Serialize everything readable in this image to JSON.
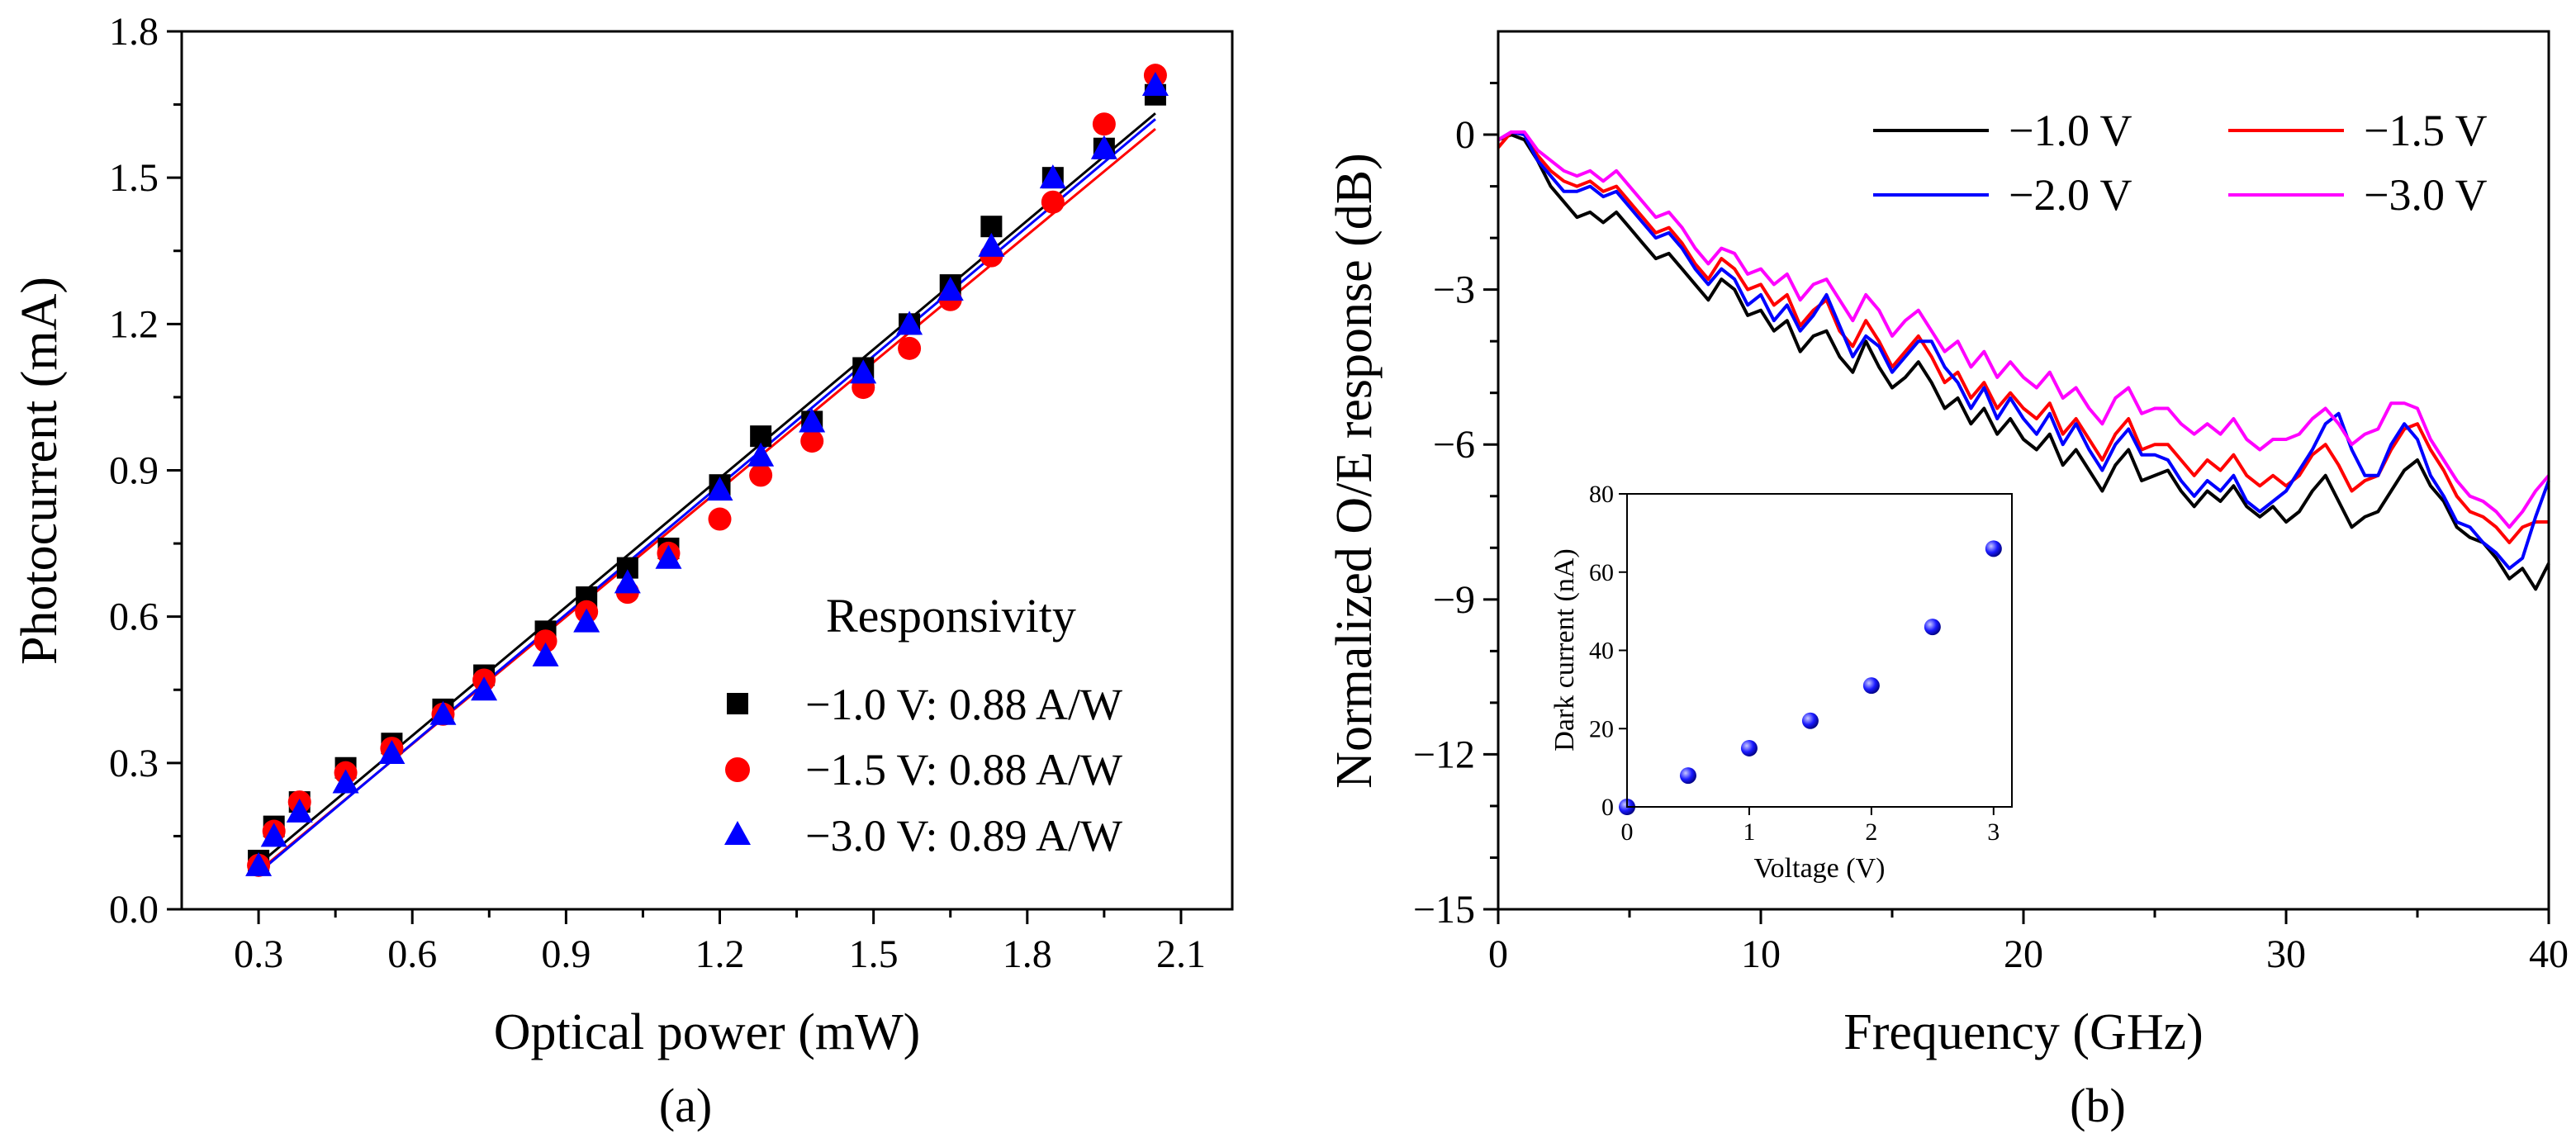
{
  "chart_data": [
    {
      "type": "scatter",
      "panel_label": "(a)",
      "xlabel": "Optical power (mW)",
      "ylabel": "Photocurrent (mA)",
      "xlim": [
        0.15,
        2.2
      ],
      "ylim": [
        0.0,
        1.8
      ],
      "xticks": [
        "0.3",
        "0.6",
        "0.9",
        "1.2",
        "1.5",
        "1.8",
        "2.1"
      ],
      "yticks": [
        "0.0",
        "0.3",
        "0.6",
        "0.9",
        "1.2",
        "1.5",
        "1.8"
      ],
      "legend_title": "Responsivity",
      "legend_position": "bottom-right",
      "series": [
        {
          "name": "−1.0 V: 0.88 A/W",
          "marker": "square",
          "color": "#000000",
          "x": [
            0.3,
            0.33,
            0.38,
            0.47,
            0.56,
            0.66,
            0.74,
            0.86,
            0.94,
            1.02,
            1.1,
            1.2,
            1.28,
            1.38,
            1.48,
            1.57,
            1.65,
            1.73,
            1.85,
            1.95,
            2.05
          ],
          "y": [
            0.1,
            0.17,
            0.22,
            0.29,
            0.34,
            0.41,
            0.48,
            0.57,
            0.64,
            0.7,
            0.74,
            0.87,
            0.97,
            1.0,
            1.11,
            1.2,
            1.28,
            1.4,
            1.5,
            1.56,
            1.67
          ],
          "fit": [
            [
              0.3,
              0.092
            ],
            [
              2.05,
              1.632
            ]
          ]
        },
        {
          "name": "−1.5 V: 0.88 A/W",
          "marker": "circle",
          "color": "#ff0000",
          "x": [
            0.3,
            0.33,
            0.38,
            0.47,
            0.56,
            0.66,
            0.74,
            0.86,
            0.94,
            1.02,
            1.1,
            1.2,
            1.28,
            1.38,
            1.48,
            1.57,
            1.65,
            1.73,
            1.85,
            1.95,
            2.05
          ],
          "y": [
            0.09,
            0.16,
            0.22,
            0.28,
            0.33,
            0.4,
            0.47,
            0.55,
            0.61,
            0.65,
            0.73,
            0.8,
            0.89,
            0.96,
            1.07,
            1.15,
            1.25,
            1.34,
            1.45,
            1.61,
            1.71
          ],
          "fit": [
            [
              0.3,
              0.078
            ],
            [
              2.05,
              1.6
            ]
          ]
        },
        {
          "name": "−3.0 V: 0.89 A/W",
          "marker": "triangle",
          "color": "#0000ff",
          "x": [
            0.3,
            0.33,
            0.38,
            0.47,
            0.56,
            0.66,
            0.74,
            0.86,
            0.94,
            1.02,
            1.1,
            1.2,
            1.28,
            1.38,
            1.48,
            1.57,
            1.65,
            1.73,
            1.85,
            1.95,
            2.05
          ],
          "y": [
            0.09,
            0.15,
            0.2,
            0.26,
            0.32,
            0.4,
            0.45,
            0.52,
            0.59,
            0.67,
            0.72,
            0.86,
            0.93,
            1.0,
            1.1,
            1.2,
            1.27,
            1.36,
            1.5,
            1.56,
            1.69
          ],
          "fit": [
            [
              0.3,
              0.075
            ],
            [
              2.05,
              1.62
            ]
          ]
        }
      ]
    },
    {
      "type": "line",
      "panel_label": "(b)",
      "xlabel": "Frequency (GHz)",
      "ylabel": "Normalized O/E response (dB)",
      "xlim": [
        0,
        40
      ],
      "ylim": [
        -15,
        2
      ],
      "xticks": [
        "0",
        "10",
        "20",
        "30",
        "40"
      ],
      "yticks": [
        "0",
        "−3",
        "−6",
        "−9",
        "−12",
        "−15"
      ],
      "legend_position": "top-right",
      "series": [
        {
          "name": "−1.0 V",
          "color": "#000000",
          "x": [
            0,
            0.5,
            1,
            1.5,
            2,
            2.5,
            3,
            3.5,
            4,
            4.5,
            5,
            5.5,
            6,
            6.5,
            7,
            7.5,
            8,
            8.5,
            9,
            9.5,
            10,
            10.5,
            11,
            11.5,
            12,
            12.5,
            13,
            13.5,
            14,
            14.5,
            15,
            15.5,
            16,
            16.5,
            17,
            17.5,
            18,
            18.5,
            19,
            19.5,
            20,
            20.5,
            21,
            21.5,
            22,
            22.5,
            23,
            23.5,
            24,
            24.5,
            25,
            25.5,
            26,
            26.5,
            27,
            27.5,
            28,
            28.5,
            29,
            29.5,
            30,
            30.5,
            31,
            31.5,
            32,
            32.5,
            33,
            33.5,
            34,
            34.5,
            35,
            35.5,
            36,
            36.5,
            37,
            37.5,
            38,
            38.5,
            39,
            39.5,
            40
          ],
          "y": [
            -0.1,
            0.0,
            -0.1,
            -0.5,
            -1.0,
            -1.3,
            -1.6,
            -1.5,
            -1.7,
            -1.5,
            -1.8,
            -2.1,
            -2.4,
            -2.3,
            -2.6,
            -2.9,
            -3.2,
            -2.8,
            -3.0,
            -3.5,
            -3.4,
            -3.8,
            -3.6,
            -4.2,
            -3.9,
            -3.8,
            -4.3,
            -4.6,
            -4.0,
            -4.5,
            -4.9,
            -4.7,
            -4.4,
            -4.8,
            -5.3,
            -5.1,
            -5.6,
            -5.3,
            -5.8,
            -5.5,
            -5.9,
            -6.1,
            -5.8,
            -6.4,
            -6.1,
            -6.5,
            -6.9,
            -6.4,
            -6.1,
            -6.7,
            -6.6,
            -6.5,
            -6.9,
            -7.2,
            -6.9,
            -7.1,
            -6.8,
            -7.2,
            -7.4,
            -7.2,
            -7.5,
            -7.3,
            -6.9,
            -6.6,
            -7.1,
            -7.6,
            -7.4,
            -7.3,
            -6.9,
            -6.5,
            -6.3,
            -6.8,
            -7.1,
            -7.6,
            -7.8,
            -7.9,
            -8.2,
            -8.6,
            -8.4,
            -8.8,
            -8.3
          ],
          "x_step": 0.5
        },
        {
          "name": "−1.5 V",
          "color": "#ff0000",
          "y": [
            -0.25,
            0.05,
            0.0,
            -0.4,
            -0.7,
            -0.9,
            -1.0,
            -0.9,
            -1.1,
            -1.0,
            -1.3,
            -1.6,
            -1.9,
            -1.8,
            -2.1,
            -2.5,
            -2.8,
            -2.4,
            -2.6,
            -3.0,
            -2.9,
            -3.3,
            -3.1,
            -3.7,
            -3.4,
            -3.2,
            -3.8,
            -4.1,
            -3.6,
            -4.0,
            -4.5,
            -4.2,
            -3.9,
            -4.3,
            -4.8,
            -4.6,
            -5.1,
            -4.8,
            -5.3,
            -5.0,
            -5.3,
            -5.5,
            -5.2,
            -5.8,
            -5.5,
            -5.9,
            -6.3,
            -5.8,
            -5.5,
            -6.1,
            -6.0,
            -6.0,
            -6.3,
            -6.6,
            -6.3,
            -6.5,
            -6.2,
            -6.6,
            -6.8,
            -6.6,
            -6.8,
            -6.6,
            -6.2,
            -6.0,
            -6.4,
            -6.9,
            -6.7,
            -6.6,
            -6.1,
            -5.7,
            -5.6,
            -6.1,
            -6.5,
            -7.0,
            -7.3,
            -7.4,
            -7.6,
            -7.9,
            -7.6,
            -7.5,
            -7.5
          ]
        },
        {
          "name": "−2.0 V",
          "color": "#0000ff",
          "y": [
            -0.1,
            0.05,
            0.0,
            -0.5,
            -0.8,
            -1.1,
            -1.1,
            -1.0,
            -1.2,
            -1.1,
            -1.4,
            -1.7,
            -2.0,
            -1.9,
            -2.2,
            -2.6,
            -2.9,
            -2.6,
            -2.8,
            -3.3,
            -3.1,
            -3.6,
            -3.3,
            -3.8,
            -3.5,
            -3.1,
            -3.7,
            -4.3,
            -3.9,
            -4.1,
            -4.6,
            -4.3,
            -4.0,
            -4.0,
            -4.5,
            -4.8,
            -5.3,
            -4.9,
            -5.5,
            -5.1,
            -5.5,
            -5.8,
            -5.4,
            -6.0,
            -5.6,
            -6.1,
            -6.5,
            -6.0,
            -5.7,
            -6.2,
            -6.2,
            -6.3,
            -6.7,
            -7.0,
            -6.7,
            -6.9,
            -6.6,
            -7.1,
            -7.3,
            -7.1,
            -6.9,
            -6.5,
            -6.1,
            -5.6,
            -5.4,
            -6.1,
            -6.6,
            -6.6,
            -6.0,
            -5.6,
            -5.9,
            -6.6,
            -7.0,
            -7.5,
            -7.6,
            -7.9,
            -8.1,
            -8.4,
            -8.2,
            -7.4,
            -6.7
          ]
        },
        {
          "name": "−3.0 V",
          "color": "#ff00ff",
          "y": [
            -0.1,
            0.05,
            0.05,
            -0.3,
            -0.5,
            -0.7,
            -0.8,
            -0.7,
            -0.9,
            -0.7,
            -1.0,
            -1.3,
            -1.6,
            -1.5,
            -1.8,
            -2.2,
            -2.5,
            -2.2,
            -2.3,
            -2.7,
            -2.6,
            -2.9,
            -2.7,
            -3.2,
            -2.9,
            -2.8,
            -3.2,
            -3.6,
            -3.1,
            -3.4,
            -3.9,
            -3.6,
            -3.4,
            -3.8,
            -4.2,
            -4.0,
            -4.5,
            -4.2,
            -4.7,
            -4.4,
            -4.7,
            -4.9,
            -4.6,
            -5.1,
            -4.9,
            -5.3,
            -5.6,
            -5.1,
            -4.9,
            -5.4,
            -5.3,
            -5.3,
            -5.6,
            -5.8,
            -5.6,
            -5.8,
            -5.5,
            -5.9,
            -6.1,
            -5.9,
            -5.9,
            -5.8,
            -5.5,
            -5.3,
            -5.6,
            -6.0,
            -5.8,
            -5.7,
            -5.2,
            -5.2,
            -5.3,
            -5.9,
            -6.3,
            -6.7,
            -7.0,
            -7.1,
            -7.3,
            -7.6,
            -7.3,
            -6.9,
            -6.6
          ]
        }
      ],
      "inset": {
        "type": "scatter",
        "xlabel": "Voltage (V)",
        "ylabel": "Dark current (nA)",
        "xlim": [
          0,
          3.15
        ],
        "ylim": [
          0,
          80
        ],
        "xticks": [
          "0",
          "1",
          "2",
          "3"
        ],
        "yticks": [
          "0",
          "20",
          "40",
          "60",
          "80"
        ],
        "color": "#1a1aff",
        "x": [
          0,
          0.5,
          1.0,
          1.5,
          2.0,
          2.5,
          3.0
        ],
        "y": [
          0,
          8,
          15,
          22,
          31,
          46,
          66
        ]
      }
    }
  ]
}
